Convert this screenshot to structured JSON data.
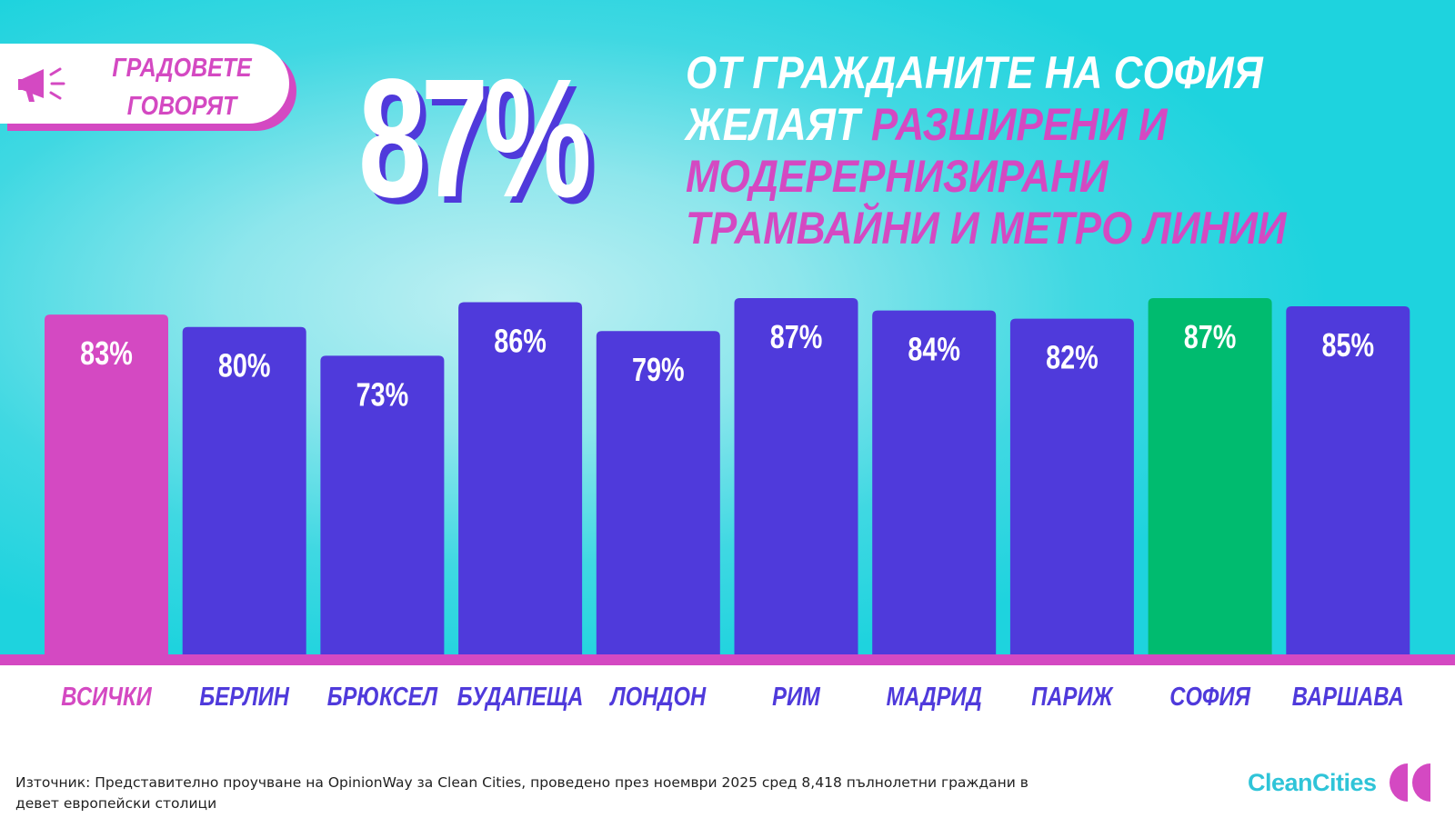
{
  "colors": {
    "all": "#d449c2",
    "city": "#4f3adb",
    "highlight": "#00bb6f",
    "background": "#1ed3de",
    "accent": "#d449c2"
  },
  "tag": {
    "line1": "ГРАДОВЕТЕ",
    "line2": "ГОВОРЯТ",
    "icon": "megaphone-icon"
  },
  "big_stat": "87%",
  "headline": {
    "part1": "ОТ ГРАЖДАНИТЕ НА СОФИЯ",
    "part2": "ЖЕЛАЯТ ",
    "highlight1": "РАЗШИРЕНИ И",
    "highlight2": "МОДЕРЕРНИЗИРАНИ",
    "highlight3": "ТРАМВАЙНИ И МЕТРО ЛИНИИ"
  },
  "chart_data": {
    "type": "bar",
    "title": "",
    "xlabel": "",
    "ylabel": "",
    "ylim": [
      0,
      100
    ],
    "grid": false,
    "categories": [
      "ВСИЧКИ",
      "БЕРЛИН",
      "БРЮКСЕЛ",
      "БУДАПЕЩА",
      "ЛОНДОН",
      "РИМ",
      "МАДРИД",
      "ПАРИЖ",
      "СОФИЯ",
      "ВАРШАВА"
    ],
    "values": [
      83,
      80,
      73,
      86,
      79,
      87,
      84,
      82,
      87,
      85
    ],
    "value_labels": [
      "83%",
      "80%",
      "73%",
      "86%",
      "79%",
      "87%",
      "84%",
      "82%",
      "87%",
      "85%"
    ],
    "bar_color_keys": [
      "all",
      "city",
      "city",
      "city",
      "city",
      "city",
      "city",
      "city",
      "highlight",
      "city"
    ]
  },
  "source": "Източник: Представително проучване на OpinionWay за Clean Cities, проведено през ноември 2025 сред 8,418 пълнолетни граждани в девет европейски столици",
  "logo": {
    "text": "CleanCities",
    "icon": "clean-cities-logo-icon"
  }
}
